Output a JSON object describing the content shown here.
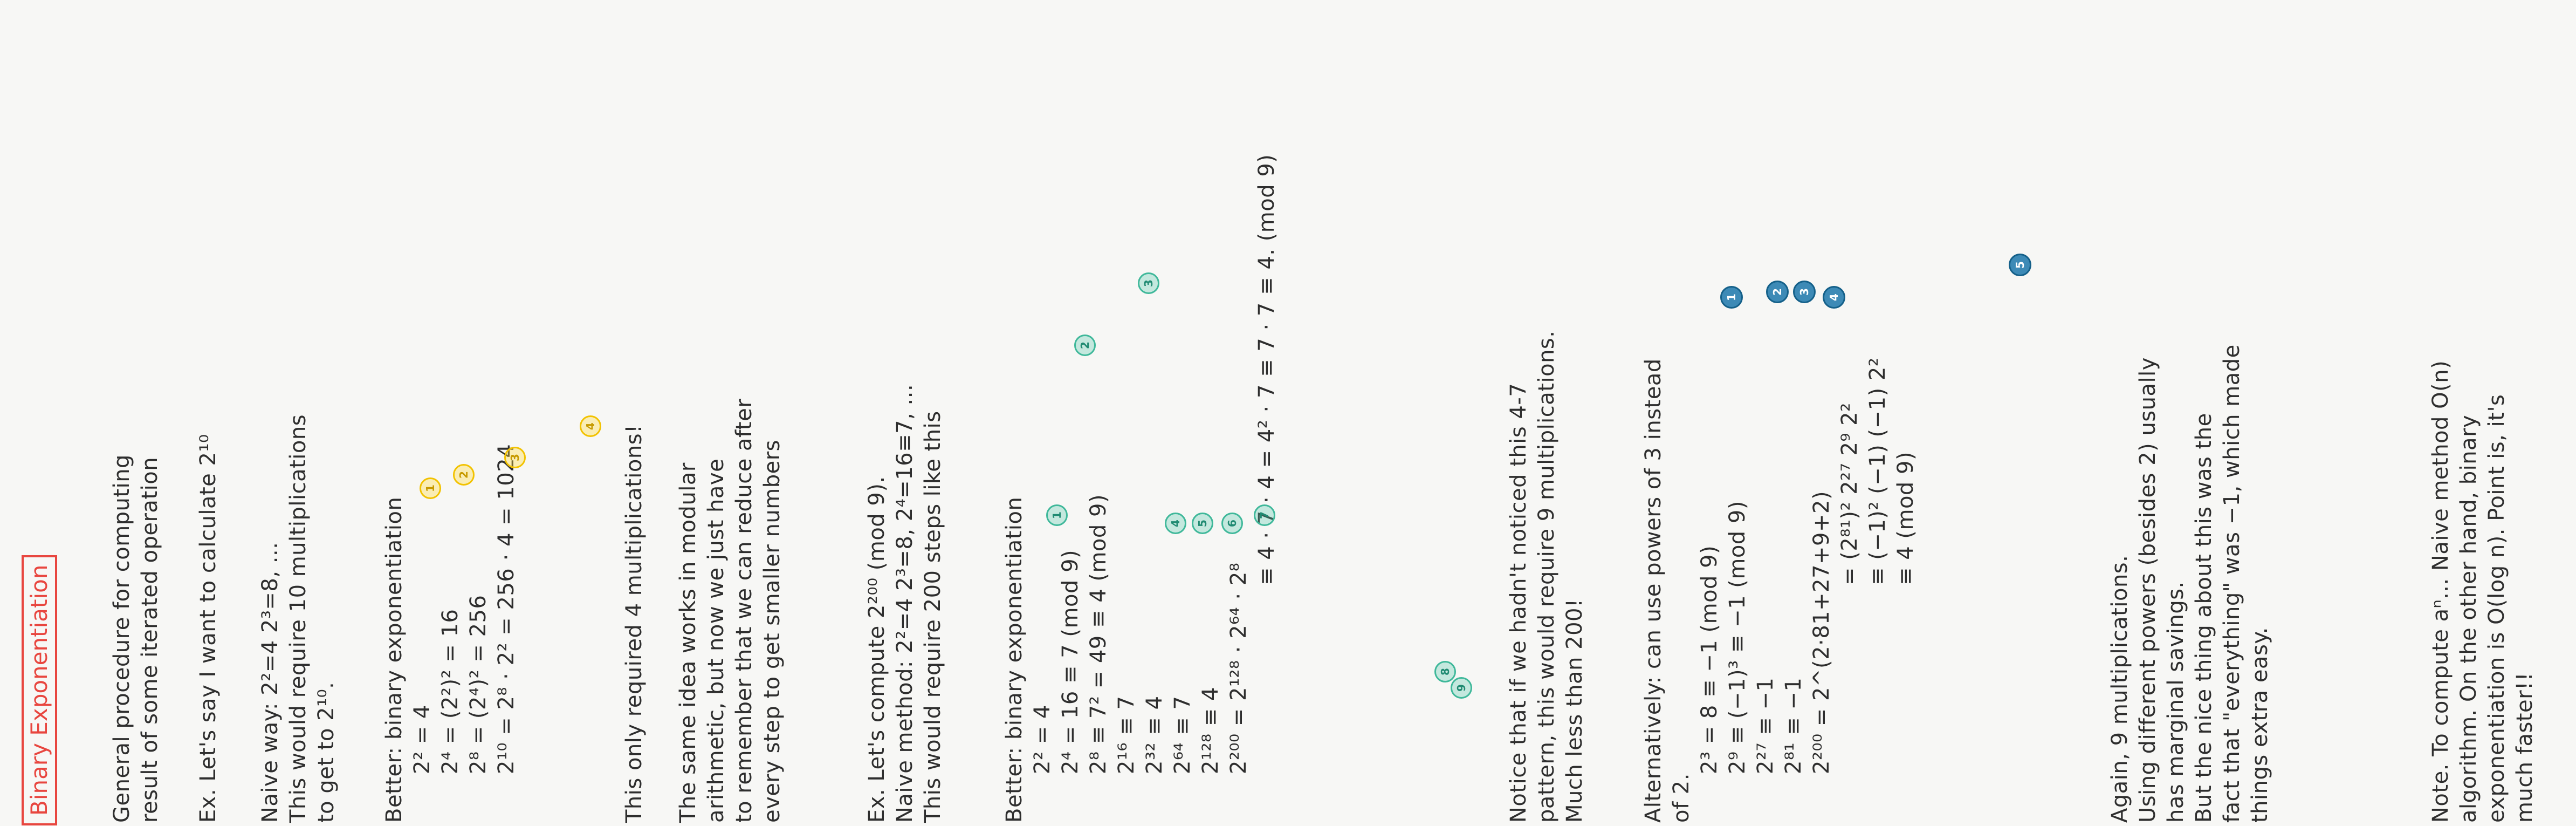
{
  "title": "Binary Exponentiation",
  "colors": {
    "title": "#e8463f",
    "yellow_marker": "#f2c200",
    "teal_marker": "#3fb89a",
    "blue_marker": "#1c77aa"
  },
  "sections": {
    "intro": [
      "General procedure for computing",
      "result of some iterated operation"
    ],
    "ex1": [
      "Ex. Let's say I want to calculate 2¹⁰"
    ],
    "naive1": [
      "Naive way: 2²=4   2³=8, ...",
      "This would require 10 multiplications",
      "to get to 2¹⁰."
    ],
    "better1": [
      "Better: binary exponentiation",
      "2² = 4",
      "2⁴ = (2²)² = 16",
      "2⁸ = (2⁴)² = 256",
      "2¹⁰ = 2⁸ · 2² = 256 · 4 = 1024"
    ],
    "only4": [
      "This only required 4 multiplications!"
    ],
    "modular": [
      "The same idea works in modular",
      "arithmetic, but now we just have",
      "to remember that we can reduce after",
      "every step to get smaller numbers"
    ],
    "ex2": [
      "Ex. Let's compute 2²⁰⁰ (mod 9).",
      "Naive method: 2²=4  2³=8,  2⁴=16≡7, ...",
      "This would require 200 steps like this"
    ],
    "better2": [
      "Better: binary exponentiation",
      "2² = 4",
      "2⁴ = 16 ≡ 7 (mod 9)",
      "2⁸ ≡ 7² = 49 ≡ 4 (mod 9)",
      "2¹⁶ ≡ 7",
      "2³² ≡ 4",
      "2⁶⁴ ≡ 7",
      "2¹²⁸ ≡ 4",
      "2²⁰⁰ = 2¹²⁸ · 2⁶⁴ · 2⁸",
      "≡ 4 · 7 · 4 = 4² · 7 ≡ 7 · 7 ≡ 4. (mod 9)"
    ],
    "notice": [
      "Notice that if we hadn't noticed this 4-7",
      "pattern, this would require 9 multiplications.",
      "Much less than 200!"
    ],
    "alt": [
      "Alternatively: can use powers of 3 instead",
      "of 2.",
      "2³ = 8 ≡ −1 (mod 9)",
      "2⁹ ≡ (−1)³ ≡ −1 (mod 9)",
      "2²⁷ ≡ −1",
      "2⁸¹ ≡ −1",
      "2²⁰⁰ = 2^(2·81+27+9+2)",
      "= (2⁸¹)² 2²⁷ 2⁹ 2²",
      "≡ (−1)² (−1) (−1) 2²",
      "≡ 4  (mod 9)"
    ],
    "again": [
      "Again, 9 multiplications.",
      "Using different powers (besides 2) usually",
      "has marginal savings.",
      "But the nice thing about this was the",
      "fact that \"everything\" was −1, which made",
      "things extra easy."
    ],
    "note": [
      "Note. To compute aⁿ... Naive method O(n)",
      "algorithm. On the other hand, binary",
      "exponentiation is O(log n). Point is, it's",
      "much faster!!"
    ]
  },
  "markers": {
    "yellow": [
      "1",
      "2",
      "3",
      "4"
    ],
    "teal": [
      "1",
      "2",
      "3",
      "4",
      "5",
      "6",
      "7",
      "8",
      "9"
    ],
    "blue": [
      "1",
      "2",
      "3",
      "4",
      "5"
    ]
  }
}
